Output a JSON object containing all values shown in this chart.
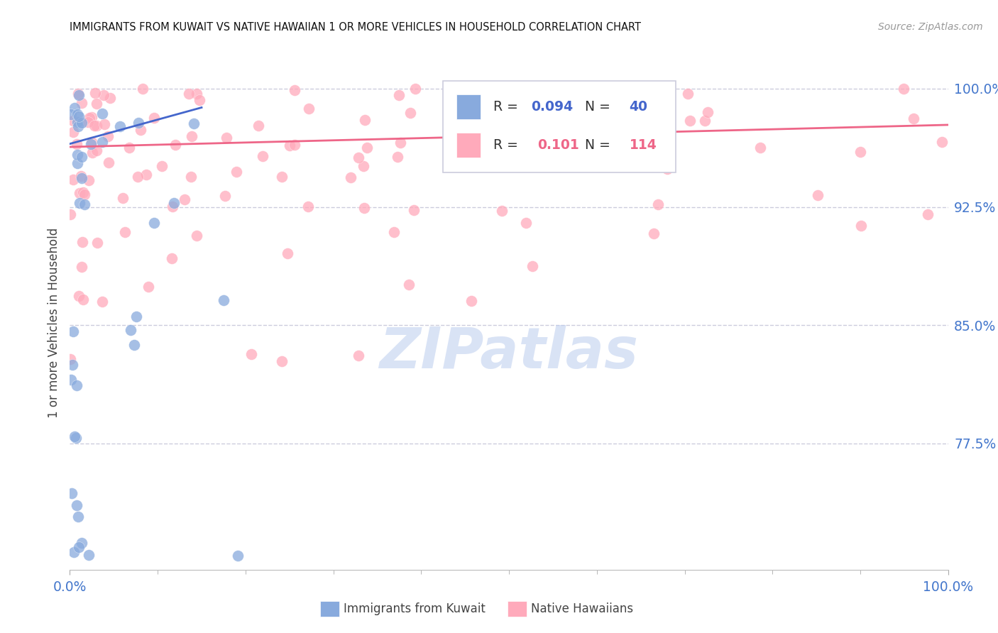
{
  "title": "IMMIGRANTS FROM KUWAIT VS NATIVE HAWAIIAN 1 OR MORE VEHICLES IN HOUSEHOLD CORRELATION CHART",
  "source": "Source: ZipAtlas.com",
  "ylabel": "1 or more Vehicles in Household",
  "xlim": [
    0.0,
    1.0
  ],
  "ylim": [
    0.695,
    1.008
  ],
  "yticks": [
    0.775,
    0.85,
    0.925,
    1.0
  ],
  "ytick_labels": [
    "77.5%",
    "85.0%",
    "92.5%",
    "100.0%"
  ],
  "xtick_labels": [
    "0.0%",
    "100.0%"
  ],
  "watermark": "ZIPatlas",
  "blue_line_x0": 0.0,
  "blue_line_x1": 0.15,
  "blue_line_y0": 0.965,
  "blue_line_y1": 0.988,
  "pink_line_x0": 0.0,
  "pink_line_x1": 1.0,
  "pink_line_y0": 0.963,
  "pink_line_y1": 0.977,
  "blue_color": "#88AADD",
  "pink_color": "#FFAABB",
  "blue_line_color": "#4466CC",
  "pink_line_color": "#EE6688",
  "title_color": "#111111",
  "axis_label_color": "#444444",
  "tick_color": "#4477CC",
  "grid_color": "#CCCCDD",
  "watermark_color": "#BBCCEE",
  "background_color": "#FFFFFF",
  "legend_r1_label": "R = ",
  "legend_r1_val": "0.094",
  "legend_n1_label": "N = ",
  "legend_n1_val": "40",
  "legend_r2_label": "R =  ",
  "legend_r2_val": "0.101",
  "legend_n2_label": "N = ",
  "legend_n2_val": "114"
}
